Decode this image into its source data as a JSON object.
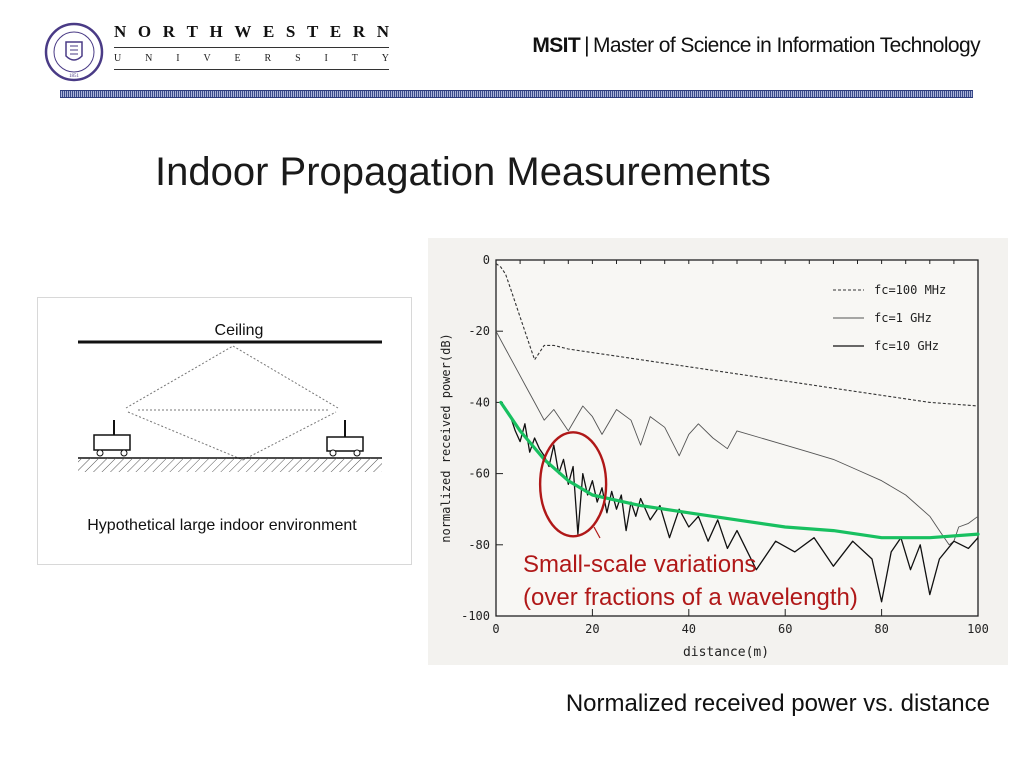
{
  "header": {
    "university_word": "NORTHWESTERN",
    "university_sub": "UNIVERSITY",
    "program_abbr": "MSIT",
    "program_separator": "|",
    "program_name": "Master of Science in Information Technology",
    "seal_text": "NORTHWESTERN UNIVERSITY",
    "seal_year": "1851"
  },
  "slide": {
    "title": "Indoor Propagation Measurements",
    "caption": "Normalized received power vs. distance"
  },
  "diagram": {
    "ceiling_label": "Ceiling",
    "caption": "Hypothetical large indoor environment"
  },
  "colors": {
    "accent_red": "#b01818",
    "trend_green": "#18c060",
    "header_band": "#3b4c8c"
  },
  "chart_data": {
    "type": "line",
    "xlabel": "distance(m)",
    "ylabel": "normalized received power(dB)",
    "xlim": [
      0,
      100
    ],
    "ylim": [
      -100,
      0
    ],
    "x_ticks": [
      0,
      20,
      40,
      60,
      80,
      100
    ],
    "y_ticks": [
      0,
      -20,
      -40,
      -60,
      -80,
      -100
    ],
    "legend_position": "top-right",
    "series": [
      {
        "name": "fc=100 MHz",
        "style": "dashed",
        "x": [
          0,
          1,
          2,
          3,
          4,
          5,
          6,
          7,
          8,
          9,
          10,
          12,
          15,
          20,
          25,
          30,
          40,
          50,
          60,
          70,
          80,
          90,
          100
        ],
        "y": [
          -1,
          -2,
          -4,
          -8,
          -12,
          -16,
          -20,
          -24,
          -28,
          -26,
          -24,
          -24,
          -25,
          -26,
          -27,
          -28,
          -30,
          -32,
          -34,
          -36,
          -38,
          -40,
          -41
        ]
      },
      {
        "name": "fc=1 GHz",
        "style": "thin",
        "x": [
          0,
          2,
          4,
          6,
          8,
          10,
          12,
          15,
          18,
          20,
          22,
          25,
          28,
          30,
          32,
          35,
          38,
          40,
          42,
          45,
          48,
          50,
          55,
          60,
          65,
          70,
          75,
          80,
          85,
          90,
          92,
          94,
          95,
          96,
          98,
          100
        ],
        "y": [
          -20,
          -25,
          -30,
          -35,
          -40,
          -45,
          -42,
          -48,
          -41,
          -44,
          -49,
          -42,
          -45,
          -52,
          -44,
          -47,
          -55,
          -49,
          -46,
          -50,
          -53,
          -48,
          -50,
          -52,
          -54,
          -56,
          -59,
          -62,
          -66,
          -72,
          -76,
          -80,
          -79,
          -75,
          -74,
          -72
        ]
      },
      {
        "name": "fc=10 GHz",
        "style": "solid",
        "x": [
          3,
          4,
          5,
          6,
          7,
          8,
          9,
          10,
          11,
          12,
          13,
          14,
          15,
          16,
          17,
          18,
          19,
          20,
          21,
          22,
          23,
          24,
          25,
          26,
          27,
          28,
          29,
          30,
          32,
          34,
          36,
          38,
          40,
          42,
          44,
          46,
          48,
          50,
          54,
          58,
          62,
          66,
          70,
          74,
          78,
          80,
          82,
          84,
          86,
          88,
          90,
          92,
          95,
          98,
          100
        ],
        "y": [
          -44,
          -48,
          -51,
          -46,
          -54,
          -50,
          -53,
          -55,
          -58,
          -52,
          -60,
          -56,
          -63,
          -58,
          -77,
          -60,
          -66,
          -62,
          -68,
          -64,
          -71,
          -65,
          -70,
          -66,
          -76,
          -68,
          -72,
          -67,
          -73,
          -69,
          -78,
          -70,
          -75,
          -72,
          -79,
          -73,
          -81,
          -76,
          -87,
          -79,
          -82,
          -78,
          -86,
          -79,
          -84,
          -96,
          -82,
          -78,
          -87,
          -80,
          -94,
          -84,
          -79,
          -81,
          -78
        ]
      }
    ],
    "overlay": {
      "name": "trend",
      "color": "#18c060",
      "x": [
        1,
        5,
        10,
        15,
        20,
        30,
        40,
        50,
        60,
        70,
        80,
        90,
        100
      ],
      "y": [
        -40,
        -48,
        -56,
        -62,
        -66,
        -69,
        -71,
        -73,
        -75,
        -76,
        -78,
        -78,
        -77
      ]
    },
    "annotation": {
      "line1": "Small-scale variations",
      "line2": "(over fractions of a wavelength)",
      "circle_center": [
        16,
        -63
      ],
      "color": "#b01818"
    }
  }
}
